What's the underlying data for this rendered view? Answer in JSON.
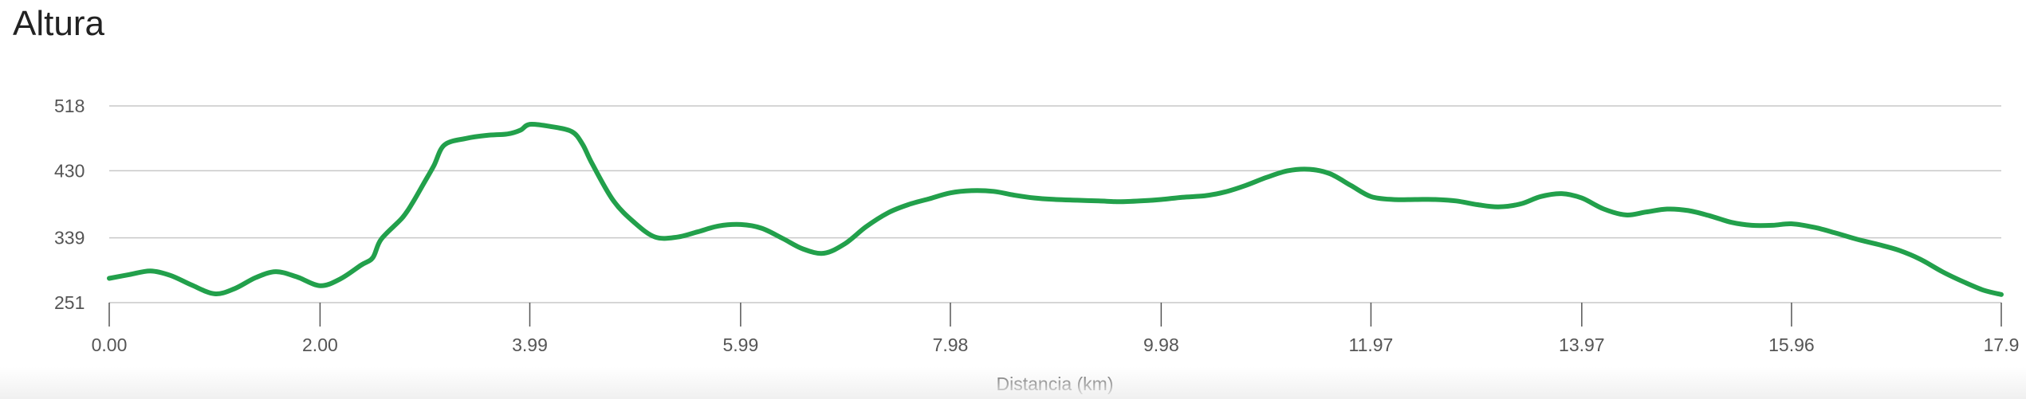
{
  "chart_data": {
    "type": "area",
    "title": "Altura",
    "xlabel": "Distancia (km)",
    "ylabel": "",
    "xlim": [
      0,
      17.95
    ],
    "ylim": [
      251,
      518
    ],
    "x_ticks": [
      "0.00",
      "2.00",
      "3.99",
      "5.99",
      "7.98",
      "9.98",
      "11.97",
      "13.97",
      "15.96",
      "17.9"
    ],
    "x_tick_values": [
      0.0,
      2.0,
      3.99,
      5.99,
      7.98,
      9.98,
      11.97,
      13.97,
      15.96,
      17.95
    ],
    "y_ticks": [
      "251",
      "339",
      "430",
      "518"
    ],
    "y_tick_values": [
      251,
      339,
      430,
      518
    ],
    "grid": "horizontal",
    "line_color": "#22a04b",
    "series": [
      {
        "x": [
          0.0,
          0.19,
          0.39,
          0.58,
          0.78,
          1.0,
          1.19,
          1.39,
          1.58,
          1.78,
          2.0,
          2.19,
          2.39,
          2.5,
          2.58,
          2.78,
          2.88,
          2.98,
          3.08,
          3.18,
          3.39,
          3.58,
          3.78,
          3.9,
          3.99,
          4.19,
          4.39,
          4.49,
          4.58,
          4.78,
          4.98,
          5.18,
          5.39,
          5.58,
          5.78,
          5.99,
          6.19,
          6.39,
          6.58,
          6.78,
          6.98,
          7.18,
          7.39,
          7.58,
          7.78,
          7.98,
          8.18,
          8.39,
          8.58,
          8.78,
          8.98,
          9.18,
          9.39,
          9.58,
          9.78,
          9.98,
          10.18,
          10.39,
          10.58,
          10.78,
          10.98,
          11.18,
          11.39,
          11.58,
          11.78,
          11.97,
          12.18,
          12.39,
          12.58,
          12.78,
          12.98,
          13.18,
          13.39,
          13.58,
          13.78,
          13.97,
          14.18,
          14.39,
          14.58,
          14.78,
          14.98,
          15.18,
          15.39,
          15.58,
          15.78,
          15.96,
          16.18,
          16.39,
          16.58,
          16.78,
          16.98,
          17.18,
          17.39,
          17.58,
          17.78,
          17.95
        ],
        "y": [
          284,
          289,
          294,
          288,
          275,
          263,
          270,
          285,
          293,
          286,
          274,
          283,
          302,
          312,
          337,
          366,
          387,
          412,
          437,
          465,
          474,
          478,
          480,
          485,
          493,
          490,
          483,
          466,
          440,
          390,
          360,
          340,
          340,
          347,
          355,
          357,
          352,
          338,
          324,
          318,
          331,
          354,
          373,
          384,
          392,
          400,
          403,
          402,
          397,
          393,
          391,
          390,
          389,
          388,
          389,
          391,
          394,
          396,
          401,
          410,
          421,
          430,
          432,
          426,
          410,
          395,
          391,
          391,
          391,
          389,
          384,
          381,
          385,
          395,
          399,
          393,
          378,
          370,
          374,
          378,
          376,
          369,
          360,
          356,
          356,
          358,
          353,
          345,
          337,
          330,
          322,
          310,
          293,
          280,
          268,
          262
        ]
      }
    ]
  }
}
